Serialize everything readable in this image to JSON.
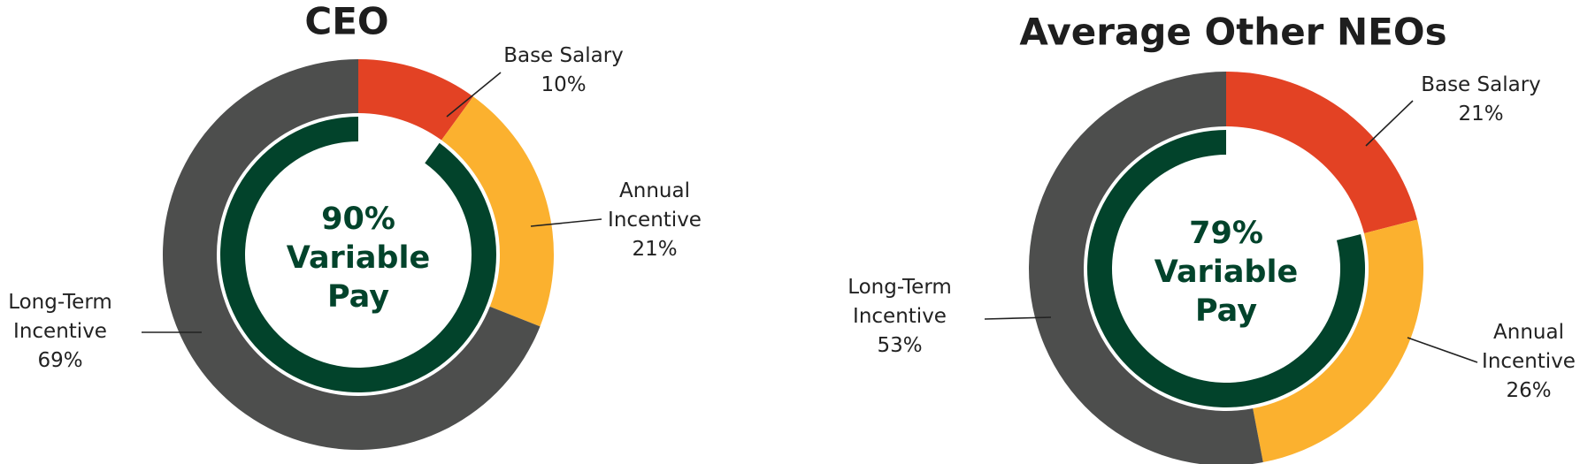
{
  "chart_data": [
    {
      "type": "donut",
      "title": "CEO",
      "categories": [
        "Base Salary",
        "Annual Incentive",
        "Long-Term Incentive"
      ],
      "values": [
        10,
        21,
        69
      ],
      "value_labels": [
        "10%",
        "21%",
        "69%"
      ],
      "colors": [
        "#e34224",
        "#fbb12f",
        "#4d4e4d"
      ],
      "variable_pay": 90,
      "variable_pay_label": "90%",
      "variable_pay_text": "Variable Pay",
      "variable_pay_color": "#02432b"
    },
    {
      "type": "donut",
      "title": "Average Other NEOs",
      "categories": [
        "Base Salary",
        "Annual Incentive",
        "Long-Term Incentive"
      ],
      "values": [
        21,
        26,
        53
      ],
      "value_labels": [
        "21%",
        "26%",
        "53%"
      ],
      "colors": [
        "#e34224",
        "#fbb12f",
        "#4d4e4d"
      ],
      "variable_pay": 79,
      "variable_pay_label": "79%",
      "variable_pay_text": "Variable Pay",
      "variable_pay_color": "#02432b"
    }
  ]
}
